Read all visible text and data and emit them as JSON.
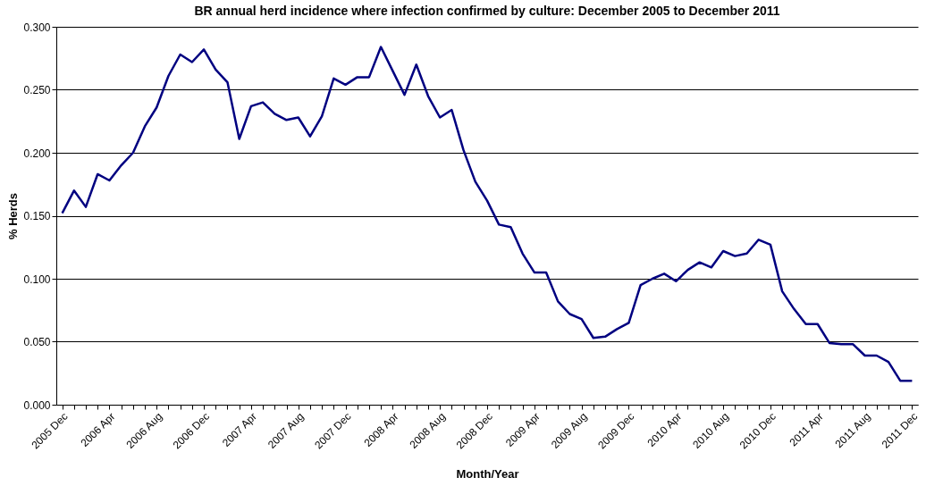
{
  "chart_data": {
    "type": "line",
    "title": "BR annual herd incidence where infection confirmed by culture: December 2005 to December 2011",
    "xlabel": "Month/Year",
    "ylabel": "% Herds",
    "categories": [
      "2005 Dec",
      null,
      null,
      null,
      "2006 Apr",
      null,
      null,
      null,
      "2006 Aug",
      null,
      null,
      null,
      "2006 Dec",
      null,
      null,
      null,
      "2007 Apr",
      null,
      null,
      null,
      "2007 Aug",
      null,
      null,
      null,
      "2007 Dec",
      null,
      null,
      null,
      "2008 Apr",
      null,
      null,
      null,
      "2008 Aug",
      null,
      null,
      null,
      "2008 Dec",
      null,
      null,
      null,
      "2009 Apr",
      null,
      null,
      null,
      "2009 Aug",
      null,
      null,
      null,
      "2009 Dec",
      null,
      null,
      null,
      "2010 Apr",
      null,
      null,
      null,
      "2010 Aug",
      null,
      null,
      null,
      "2010 Dec",
      null,
      null,
      null,
      "2011 Apr",
      null,
      null,
      null,
      "2011 Aug",
      null,
      null,
      null,
      "2011 Dec"
    ],
    "series": [
      {
        "color": "#000080",
        "values": [
          0.152,
          0.17,
          0.157,
          0.183,
          0.178,
          0.19,
          0.2,
          0.221,
          0.236,
          0.261,
          0.278,
          0.272,
          0.282,
          0.266,
          0.256,
          0.211,
          0.237,
          0.24,
          0.231,
          0.226,
          0.228,
          0.213,
          0.229,
          0.259,
          0.254,
          0.26,
          0.26,
          0.284,
          0.265,
          0.246,
          0.27,
          0.245,
          0.228,
          0.234,
          0.202,
          0.177,
          0.162,
          0.143,
          0.141,
          0.12,
          0.105,
          0.105,
          0.082,
          0.072,
          0.068,
          0.053,
          0.054,
          0.06,
          0.065,
          0.095,
          0.1,
          0.104,
          0.098,
          0.107,
          0.113,
          0.109,
          0.122,
          0.118,
          0.12,
          0.131,
          0.127,
          0.09,
          0.076,
          0.064,
          0.064,
          0.049,
          0.048,
          0.048,
          0.039,
          0.039,
          0.034,
          0.019,
          0.019
        ]
      }
    ],
    "ylim": [
      0,
      0.3
    ],
    "yticks": [
      {
        "value": 0,
        "label": "0.000"
      },
      {
        "value": 0.05,
        "label": "0.050"
      },
      {
        "value": 0.1,
        "label": "0.100"
      },
      {
        "value": 0.15,
        "label": "0.150"
      },
      {
        "value": 0.2,
        "label": "0.200"
      },
      {
        "value": 0.25,
        "label": "0.250"
      },
      {
        "value": 0.3,
        "label": "0.300"
      }
    ],
    "grid": "y",
    "marker": "none",
    "line_style": "solid"
  }
}
